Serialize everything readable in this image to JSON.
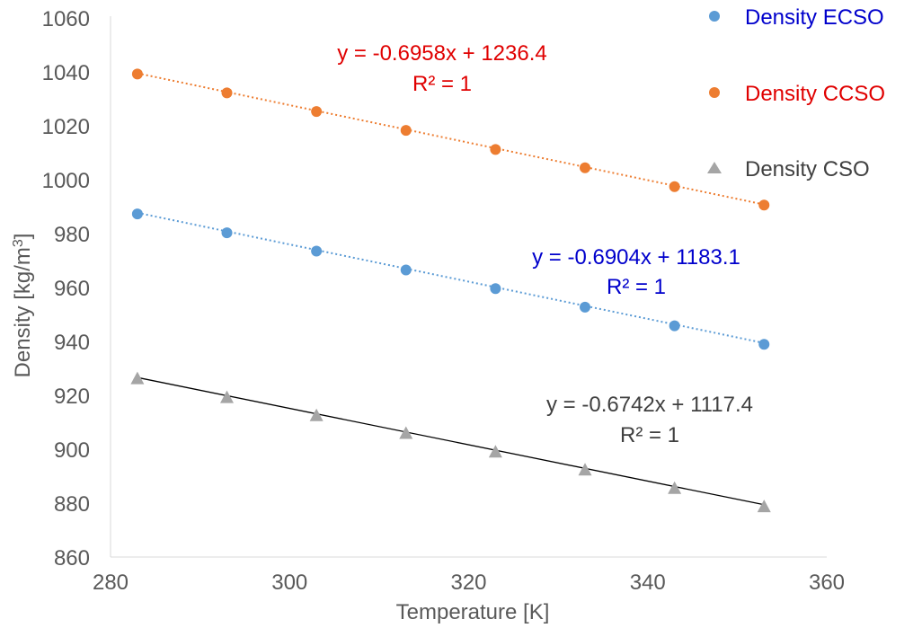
{
  "chart_data": {
    "type": "scatter",
    "xlabel": "Temperature [K]",
    "ylabel_main": "Density  [kg/m",
    "ylabel_sup": "3",
    "ylabel_end": "]",
    "xlim": [
      280,
      360
    ],
    "ylim": [
      860,
      1060
    ],
    "x_ticks": [
      "280",
      "300",
      "320",
      "340",
      "360"
    ],
    "y_ticks": [
      "860",
      "880",
      "900",
      "920",
      "940",
      "960",
      "980",
      "1000",
      "1020",
      "1040",
      "1060"
    ],
    "grid": false,
    "legend_position": "top-right",
    "x": [
      283,
      293,
      303,
      313,
      323,
      333,
      343,
      353
    ],
    "series": [
      {
        "name": "Density ECSO",
        "marker": "circle",
        "color": "#5b9bd5",
        "label_color": "#0000cc",
        "values": [
          987.3,
          980.3,
          973.5,
          966.5,
          959.6,
          952.7,
          945.8,
          938.9
        ],
        "trendline": {
          "slope": -0.6904,
          "intercept": 1183.1,
          "style": "dotted",
          "color": "#5b9bd5"
        },
        "equation": "y = -0.6904x + 1183.1",
        "r2": "R² = 1",
        "equation_color": "#0000cc"
      },
      {
        "name": "Density CCSO",
        "marker": "circle",
        "color": "#ed7d31",
        "label_color": "#e00000",
        "values": [
          1039.2,
          1032.2,
          1025.3,
          1018.3,
          1011.2,
          1004.4,
          997.4,
          990.6
        ],
        "trendline": {
          "slope": -0.6958,
          "intercept": 1236.4,
          "style": "dotted",
          "color": "#ed7d31"
        },
        "equation": "y = -0.6958x + 1236.4",
        "r2": "R² = 1",
        "equation_color": "#e00000"
      },
      {
        "name": "Density CSO",
        "marker": "triangle",
        "color": "#a5a5a5",
        "label_color": "#404040",
        "values": [
          926.3,
          919.3,
          912.6,
          906.0,
          899.1,
          892.4,
          885.6,
          878.8
        ],
        "trendline": {
          "slope": -0.6742,
          "intercept": 1117.4,
          "style": "solid",
          "color": "#000000"
        },
        "equation": "y = -0.6742x + 1117.4",
        "r2": "R² = 1",
        "equation_color": "#404040"
      }
    ]
  }
}
